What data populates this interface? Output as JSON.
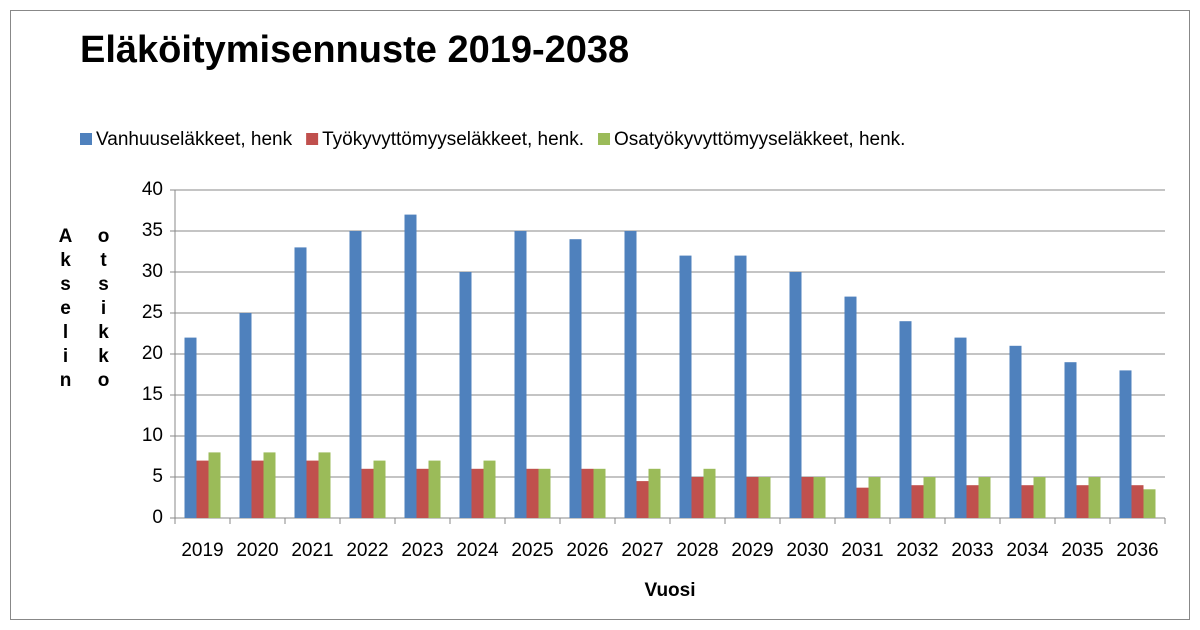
{
  "chart_data": {
    "type": "bar",
    "title": "Eläköitymisennuste 2019-2038",
    "categories": [
      "2019",
      "2020",
      "2021",
      "2022",
      "2023",
      "2024",
      "2025",
      "2026",
      "2027",
      "2028",
      "2029",
      "2030",
      "2031",
      "2032",
      "2033",
      "2034",
      "2035",
      "2036"
    ],
    "series": [
      {
        "name": "Vanhuuseläkkeet, henk",
        "color": "#4f81bd",
        "values": [
          22,
          25,
          33,
          35,
          37,
          30,
          35,
          34,
          35,
          32,
          32,
          30,
          27,
          24,
          22,
          21,
          19,
          18
        ]
      },
      {
        "name": "Työkyvyttömyyseläkkeet, henk.",
        "color": "#c0504d",
        "values": [
          7,
          7,
          7,
          6,
          6,
          6,
          6,
          6,
          4.5,
          5,
          5,
          5,
          3.7,
          4,
          4,
          4,
          4,
          4
        ]
      },
      {
        "name": "Osatyökyvyttömyyseläkkeet, henk.",
        "color": "#9bbb59",
        "values": [
          8,
          8,
          8,
          7,
          7,
          7,
          6,
          6,
          6,
          6,
          5,
          5,
          5,
          5,
          5,
          5,
          5,
          3.5
        ]
      }
    ],
    "ylim": [
      0,
      40
    ],
    "yticks": [
      0,
      5,
      10,
      15,
      20,
      25,
      30,
      35,
      40
    ],
    "grid": true,
    "legend": "top",
    "xlabel": "Vuosi",
    "ylabel": "Akselin otsikko"
  }
}
